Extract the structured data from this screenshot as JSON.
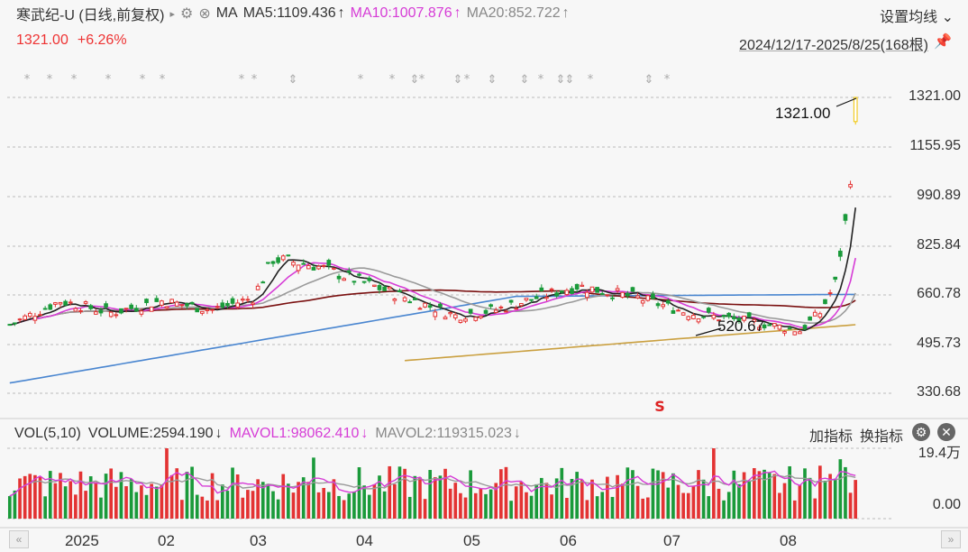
{
  "header": {
    "title": "寒武纪-U (日线,前复权)",
    "title_arrow": "▸",
    "ma_label": "MA",
    "ma5": "MA5:1109.436",
    "ma5_arrow": "↑",
    "ma10": "MA10:1007.876",
    "ma10_arrow": "↑",
    "ma20": "MA20:852.722",
    "ma20_arrow": "↑",
    "settings": "设置均线 ⌄",
    "price": "1321.00",
    "change": "+6.26%",
    "range": "2024/12/17-2025/8/25(168根)",
    "pin_icon": "pin-icon"
  },
  "colors": {
    "up": "#e33333",
    "down": "#1a9a3a",
    "ma5": "#222222",
    "ma10": "#d63cd6",
    "ma20": "#9a9a9a",
    "ma_long": "#7a1010",
    "ma_blue": "#4a86d0",
    "ma_gold": "#caa040",
    "last_up_candle": "#f0c400"
  },
  "price_axis": {
    "labels": [
      "1321.00",
      "1155.95",
      "990.89",
      "825.84",
      "660.78",
      "495.73",
      "330.68"
    ],
    "max_label": "1321.00",
    "min_label": "520.67",
    "marker": "S"
  },
  "volume": {
    "label": "VOL(5,10)",
    "volume": "VOLUME:2594.190",
    "volume_arrow": "↓",
    "mavol1": "MAVOL1:98062.410",
    "mavol1_arrow": "↓",
    "mavol2": "MAVOL2:119315.023",
    "mavol2_arrow": "↓",
    "add_indicator": "加指标",
    "switch_indicator": "换指标",
    "top_label": "19.4万",
    "bottom_label": "0.00"
  },
  "x_axis": {
    "labels": [
      "2025",
      "02",
      "03",
      "04",
      "05",
      "06",
      "07",
      "08"
    ]
  },
  "nav": {
    "left": "«",
    "right": "»"
  }
}
